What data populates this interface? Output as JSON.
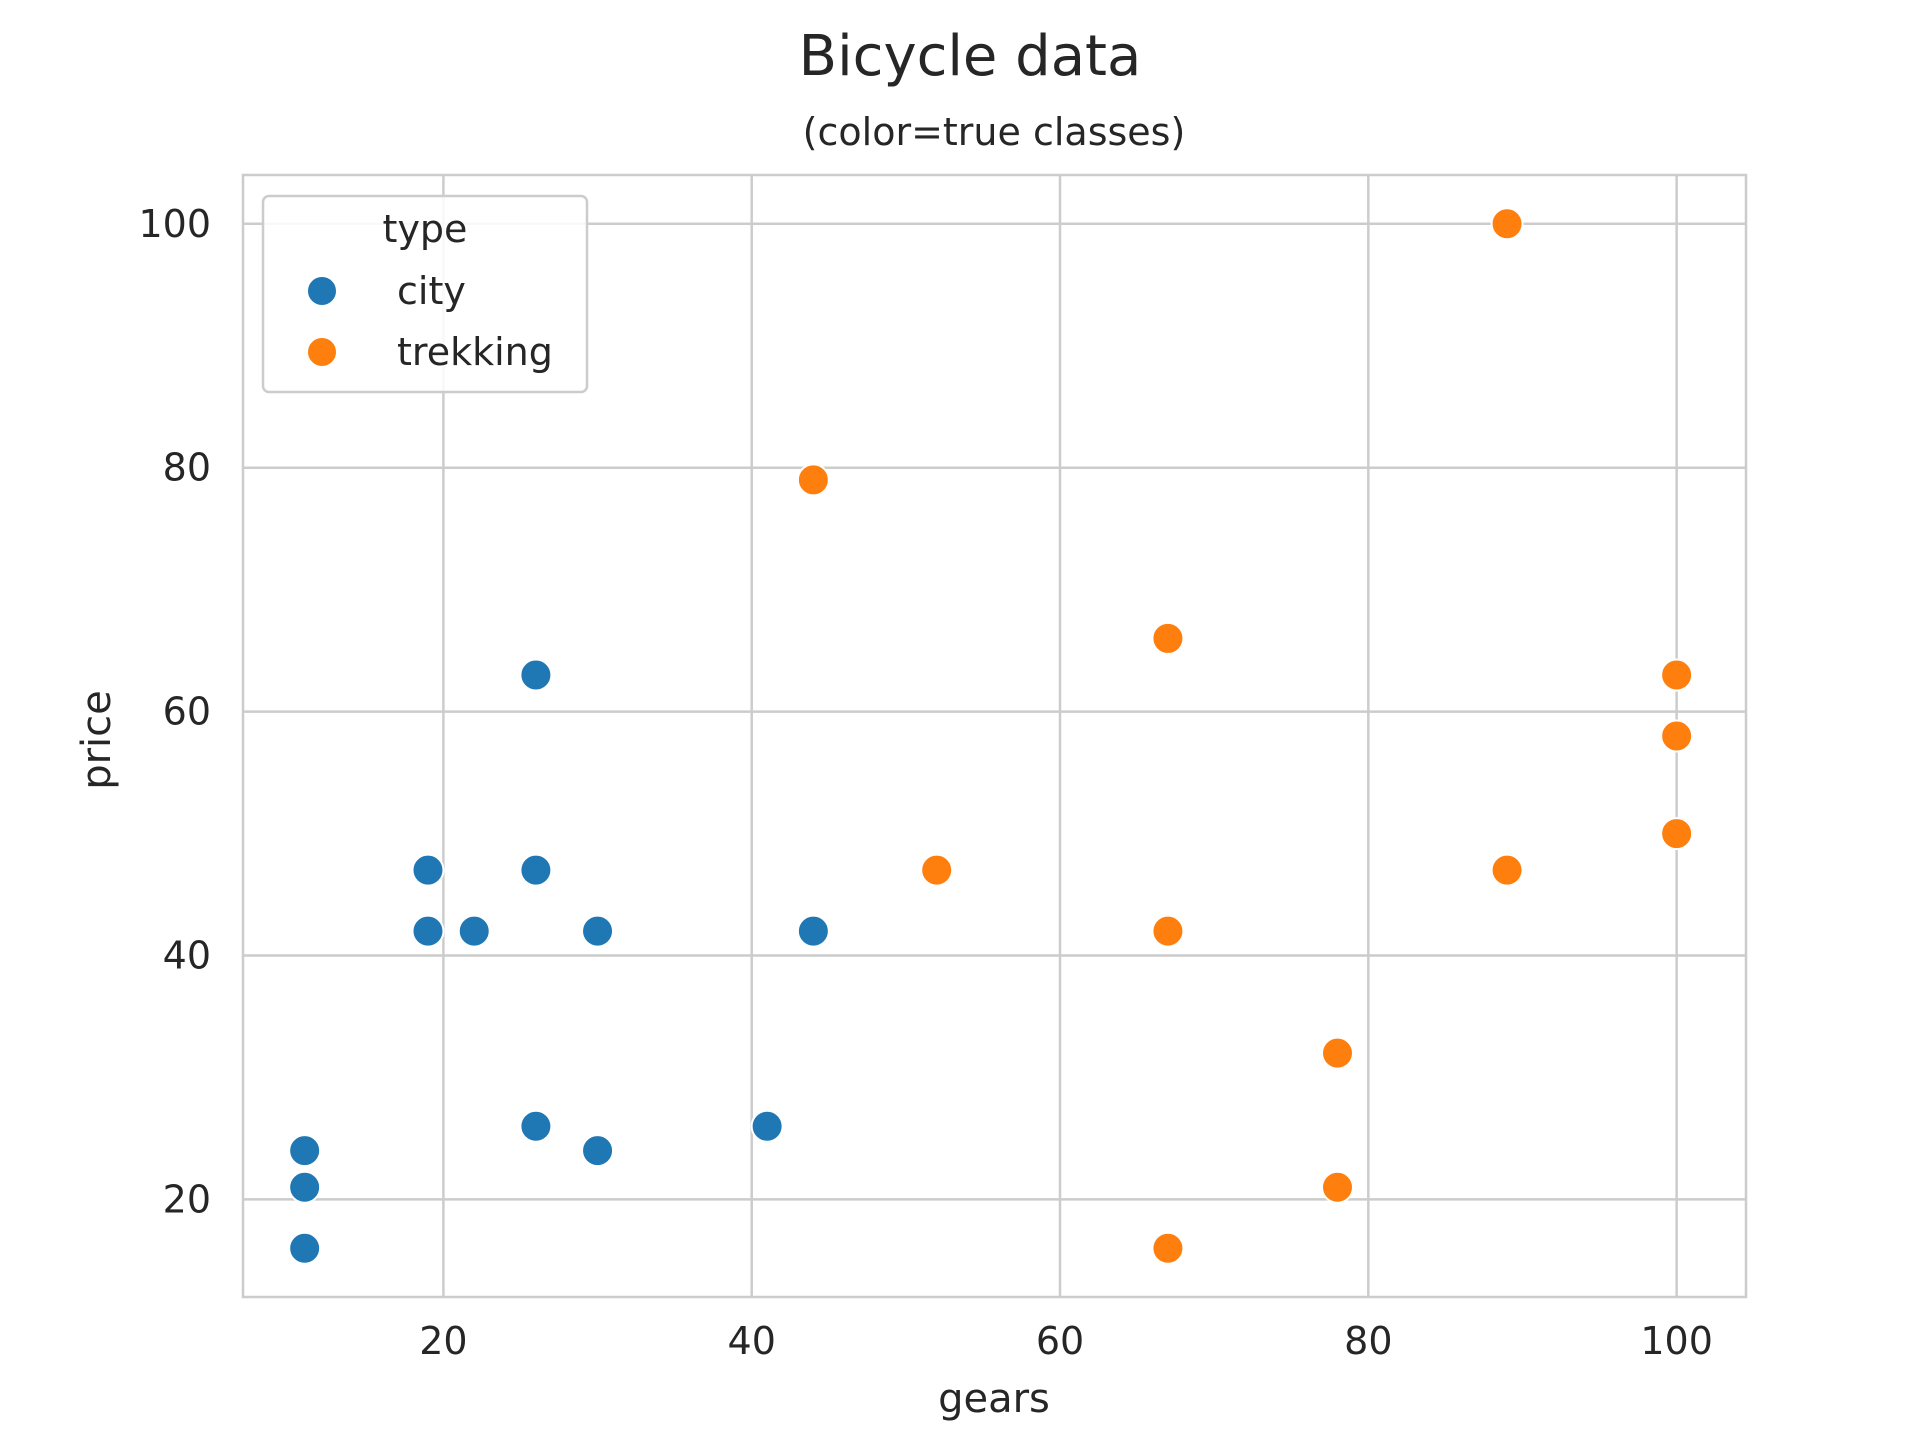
{
  "chart_data": {
    "type": "scatter",
    "title": "Bicycle data",
    "subtitle": "(color=true classes)",
    "xlabel": "gears",
    "ylabel": "price",
    "xlim": [
      7,
      104.5
    ],
    "ylim": [
      12,
      104
    ],
    "xticks": [
      20,
      40,
      60,
      80,
      100
    ],
    "yticks": [
      20,
      40,
      60,
      80,
      100
    ],
    "grid": true,
    "legend": {
      "title": "type",
      "placement": "top-left"
    },
    "series": [
      {
        "name": "city",
        "color": "#1f77b4",
        "points": [
          [
            11,
            16
          ],
          [
            11,
            21
          ],
          [
            11,
            24
          ],
          [
            19,
            42
          ],
          [
            19,
            47
          ],
          [
            22,
            42
          ],
          [
            26,
            26
          ],
          [
            26,
            47
          ],
          [
            26,
            63
          ],
          [
            30,
            24
          ],
          [
            30,
            42
          ],
          [
            41,
            26
          ],
          [
            44,
            42
          ]
        ]
      },
      {
        "name": "trekking",
        "color": "#ff7f0e",
        "points": [
          [
            44,
            79
          ],
          [
            52,
            47
          ],
          [
            67,
            16
          ],
          [
            67,
            42
          ],
          [
            67,
            66
          ],
          [
            78,
            21
          ],
          [
            78,
            32
          ],
          [
            89,
            47
          ],
          [
            89,
            100
          ],
          [
            100,
            50
          ],
          [
            100,
            58
          ],
          [
            100,
            63
          ]
        ]
      }
    ]
  }
}
